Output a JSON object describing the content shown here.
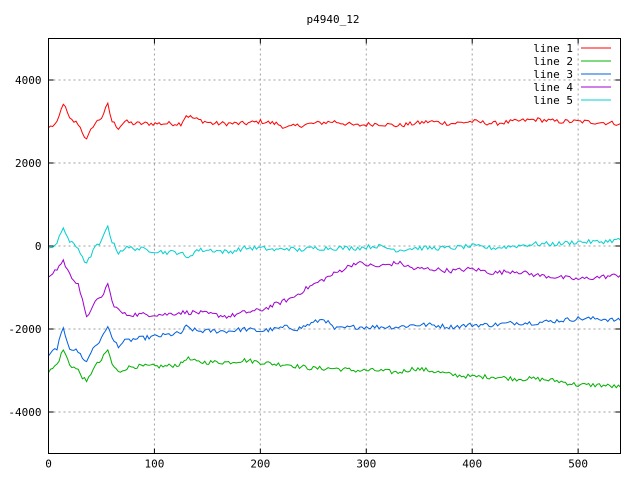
{
  "chart_data": {
    "type": "line",
    "title": "p4940_12",
    "xlabel": "",
    "ylabel": "",
    "xlim": [
      0,
      540
    ],
    "ylim": [
      -5000,
      5000
    ],
    "xticks": [
      0,
      100,
      200,
      300,
      400,
      500
    ],
    "yticks": [
      -4000,
      -2000,
      0,
      2000,
      4000
    ],
    "grid": true,
    "legend_position": "top-right",
    "series": [
      {
        "name": "line 1",
        "color": "#ff0000",
        "x": [
          0,
          8,
          14,
          20,
          28,
          36,
          42,
          50,
          56,
          60,
          66,
          72,
          80,
          95,
          110,
          125,
          130,
          140,
          155,
          170,
          185,
          200,
          215,
          225,
          235,
          250,
          270,
          290,
          310,
          330,
          345,
          360,
          380,
          400,
          420,
          440,
          460,
          480,
          500,
          520,
          540
        ],
        "y": [
          2850,
          2950,
          3450,
          3050,
          2950,
          2550,
          2900,
          3100,
          3400,
          3000,
          2850,
          3000,
          2950,
          2950,
          2950,
          2950,
          3150,
          3050,
          2950,
          2950,
          2950,
          3000,
          2950,
          2850,
          2900,
          2950,
          3000,
          2900,
          2950,
          2900,
          2950,
          3000,
          2950,
          3000,
          2950,
          3000,
          3050,
          3000,
          3000,
          2980,
          2950
        ]
      },
      {
        "name": "line 2",
        "color": "#00b000",
        "x": [
          0,
          8,
          14,
          20,
          28,
          36,
          42,
          50,
          56,
          60,
          66,
          72,
          80,
          95,
          110,
          125,
          130,
          140,
          155,
          170,
          185,
          200,
          215,
          225,
          235,
          250,
          270,
          290,
          310,
          330,
          345,
          360,
          380,
          400,
          420,
          440,
          460,
          480,
          500,
          520,
          540
        ],
        "y": [
          -3050,
          -2850,
          -2500,
          -2850,
          -3000,
          -3300,
          -2950,
          -2750,
          -2500,
          -2850,
          -3050,
          -2950,
          -2900,
          -2900,
          -2900,
          -2850,
          -2700,
          -2800,
          -2800,
          -2800,
          -2750,
          -2800,
          -2850,
          -2850,
          -2900,
          -2950,
          -2950,
          -3000,
          -3000,
          -3050,
          -2950,
          -3000,
          -3100,
          -3150,
          -3150,
          -3200,
          -3200,
          -3250,
          -3350,
          -3350,
          -3400
        ]
      },
      {
        "name": "line 3",
        "color": "#0060e0",
        "x": [
          0,
          8,
          14,
          20,
          28,
          36,
          42,
          50,
          56,
          60,
          66,
          72,
          80,
          95,
          110,
          125,
          130,
          140,
          155,
          170,
          185,
          200,
          215,
          225,
          235,
          250,
          260,
          270,
          290,
          310,
          330,
          345,
          360,
          380,
          400,
          420,
          440,
          460,
          480,
          500,
          520,
          540
        ],
        "y": [
          -2650,
          -2450,
          -2000,
          -2450,
          -2550,
          -2800,
          -2450,
          -2250,
          -1900,
          -2250,
          -2400,
          -2300,
          -2250,
          -2200,
          -2150,
          -2100,
          -1950,
          -2050,
          -2050,
          -2050,
          -2000,
          -2050,
          -2000,
          -1950,
          -2000,
          -1850,
          -1750,
          -2000,
          -1950,
          -1950,
          -1950,
          -1900,
          -1900,
          -1950,
          -1900,
          -1900,
          -1850,
          -1850,
          -1800,
          -1750,
          -1750,
          -1800
        ]
      },
      {
        "name": "line 4",
        "color": "#a000d0",
        "x": [
          0,
          8,
          14,
          20,
          28,
          36,
          42,
          50,
          56,
          60,
          66,
          72,
          80,
          95,
          110,
          125,
          140,
          155,
          170,
          185,
          200,
          215,
          230,
          245,
          260,
          275,
          290,
          310,
          330,
          345,
          360,
          380,
          400,
          420,
          440,
          460,
          480,
          500,
          520,
          540
        ],
        "y": [
          -750,
          -550,
          -350,
          -700,
          -900,
          -1750,
          -1400,
          -1250,
          -900,
          -1350,
          -1550,
          -1650,
          -1650,
          -1650,
          -1650,
          -1600,
          -1600,
          -1650,
          -1700,
          -1600,
          -1550,
          -1400,
          -1250,
          -1000,
          -800,
          -600,
          -400,
          -500,
          -400,
          -550,
          -550,
          -600,
          -550,
          -650,
          -600,
          -700,
          -750,
          -800,
          -750,
          -700
        ]
      },
      {
        "name": "line 5",
        "color": "#00d0d0",
        "x": [
          0,
          8,
          14,
          20,
          28,
          36,
          42,
          50,
          56,
          60,
          66,
          72,
          80,
          95,
          110,
          125,
          130,
          140,
          155,
          170,
          185,
          200,
          215,
          225,
          235,
          250,
          270,
          290,
          310,
          330,
          345,
          360,
          380,
          400,
          420,
          440,
          460,
          480,
          500,
          520,
          540
        ],
        "y": [
          -50,
          50,
          450,
          100,
          -50,
          -450,
          -100,
          100,
          500,
          100,
          -150,
          -50,
          -50,
          -100,
          -150,
          -150,
          -300,
          -100,
          -100,
          -150,
          -50,
          -50,
          -100,
          -50,
          -100,
          -50,
          -50,
          -50,
          0,
          -100,
          -50,
          -50,
          -50,
          0,
          -50,
          0,
          50,
          50,
          100,
          100,
          150
        ]
      }
    ]
  }
}
